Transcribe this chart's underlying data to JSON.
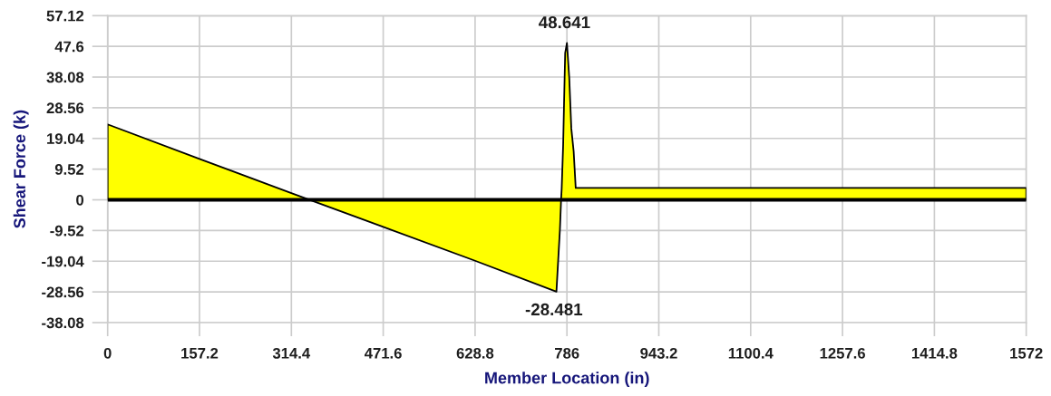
{
  "chart_data": {
    "type": "area",
    "xlabel": "Member Location (in)",
    "ylabel": "Shear Force (k)",
    "x": [
      0,
      157.2,
      314.4,
      471.6,
      628.8,
      768,
      774,
      776,
      777,
      779.5,
      781,
      783,
      786,
      790,
      793.5,
      797.5,
      801,
      1572
    ],
    "values": [
      23.4,
      12.7,
      2.1,
      -8.4,
      -18.9,
      -28.481,
      -9.2,
      0,
      3.4,
      16.9,
      29.6,
      45.6,
      48.641,
      37.7,
      22.1,
      15,
      3.7,
      3.7
    ],
    "value_labels": [
      null,
      null,
      null,
      null,
      null,
      "-28.481",
      null,
      null,
      null,
      null,
      null,
      null,
      "48.641",
      null,
      null,
      null,
      null,
      null
    ],
    "color": "#ffff00",
    "xlim": [
      0,
      1572
    ],
    "xticks": [
      0,
      157.2,
      314.4,
      471.6,
      628.8,
      786,
      943.2,
      1100.4,
      1257.6,
      1414.8,
      1572
    ],
    "ylim": [
      -38.08,
      57.12
    ],
    "yticks": [
      -38.08,
      -28.56,
      -19.04,
      -9.52,
      0,
      9.52,
      19.04,
      28.56,
      38.08,
      47.6,
      57.12
    ],
    "ref_lines": [
      {
        "axis": "y",
        "value": 0,
        "color": "#000000"
      }
    ],
    "grid": true
  }
}
